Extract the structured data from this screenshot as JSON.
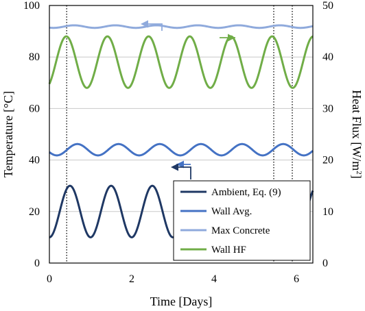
{
  "chart_data": {
    "type": "line",
    "xlabel": "Time [Days]",
    "ylabel_left": "Temperature [°C]",
    "ylabel_right": "Heat Flux [W/m²]",
    "ylabel_right_main": "Heat Flux [W/m",
    "ylabel_right_sup": "2",
    "ylabel_right_tail": "]",
    "xlim": [
      0,
      6.4
    ],
    "ylim_left": [
      0,
      100
    ],
    "ylim_right": [
      0,
      50
    ],
    "x_ticks": [
      "0",
      "2",
      "4",
      "6"
    ],
    "y_ticks_left": [
      "0",
      "20",
      "40",
      "60",
      "80",
      "100"
    ],
    "y_ticks_right": [
      "0",
      "10",
      "20",
      "30",
      "40",
      "50"
    ],
    "grid": "horizontal",
    "legend_position": "bottom-right",
    "vertical_markers": [
      0.42,
      5.45,
      5.9
    ],
    "series": [
      {
        "name": "Ambient, Eq. (9)",
        "axis": "left",
        "color": "#1f3864",
        "description": "sinusoid, 1-day period, min 10 at day 0, max 30",
        "mean": 20,
        "amplitude": 10,
        "period": 1,
        "phase": 0,
        "arrow": "left"
      },
      {
        "name": "Wall Avg.",
        "axis": "left",
        "color": "#4472c4",
        "mean": 44,
        "amplitude": 2.2,
        "period": 1,
        "phase": 0.18,
        "arrow": "left"
      },
      {
        "name": "Max Concrete",
        "axis": "left",
        "color": "#8faadc",
        "mean": 91.8,
        "amplitude": 0.5,
        "period": 1,
        "phase": 0.1,
        "arrow": "left"
      },
      {
        "name": "Wall HF",
        "axis": "right",
        "color": "#70ad47",
        "mean": 39,
        "amplitude": 5,
        "period": 1,
        "phase": -0.09,
        "arrow": "right"
      }
    ]
  }
}
